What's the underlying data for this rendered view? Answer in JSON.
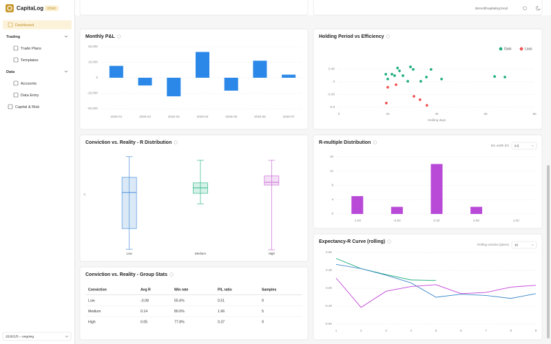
{
  "app": {
    "name": "CapitaLog",
    "badge": "DEMO",
    "user": "demo@capitalog.local"
  },
  "nav": [
    "Dashboard",
    "Trading",
    "Trade Plans",
    "Templates",
    "Data",
    "Accounts",
    "Data Entry",
    "Capital & Risk"
  ],
  "date_range": "2026/1/5 – ongoing",
  "chart_data": [
    {
      "type": "bar",
      "title": "Monthly P&L",
      "categories": [
        "2026-01",
        "2026-02",
        "2026-03",
        "2026-04",
        "2026-05",
        "2026-06",
        "2026-07"
      ],
      "values": [
        11500,
        -7500,
        -18000,
        25000,
        -12500,
        16500,
        3000
      ],
      "color": "#2b88e8",
      "ylim": [
        -30000,
        30000
      ],
      "yticks": [
        {
          "value": 30000,
          "label": "30,000"
        },
        {
          "value": 15000,
          "label": "15,000"
        },
        0,
        {
          "value": -15000,
          "label": "-15,000"
        },
        {
          "value": -30000,
          "label": "-30,000"
        }
      ],
      "grid": true
    },
    {
      "type": "scatter",
      "title": "Holding Period vs Efficiency",
      "x_label": "Holding days",
      "xlim": [
        0,
        80
      ],
      "xticks": [
        0,
        20,
        40,
        60,
        80
      ],
      "ylim": [
        -0.9,
        0.9
      ],
      "yticks": [
        0.45,
        0,
        -0.45,
        -0.9
      ],
      "grid": true,
      "legend": "top-right",
      "series": [
        {
          "name": "Gain",
          "color": "#1fae7e",
          "x": [
            19.2,
            20,
            21.7,
            22.8,
            24,
            24.8,
            26.2,
            28.2,
            29.3,
            30.4,
            33.5,
            35.8,
            37.7,
            42,
            63.7,
            67.9
          ],
          "values": [
            0.27,
            0.1,
            0.27,
            0.22,
            0.49,
            0.39,
            0.22,
            0.02,
            0.53,
            0.44,
            0.02,
            0.17,
            0.44,
            0.1,
            0.19,
            0.17
          ]
        },
        {
          "name": "Loss",
          "color": "#ef5350",
          "x": [
            20,
            23.4,
            19.4,
            30.7,
            33.2,
            36
          ],
          "values": [
            -0.19,
            -0.1,
            -0.75,
            -0.51,
            -0.63,
            -0.83
          ]
        }
      ]
    },
    {
      "type": "box",
      "title": "Conviction vs. Reality - R Distribution",
      "categories": [
        "Low",
        "Medium",
        "High"
      ],
      "colors": [
        "#4a90d9",
        "#2eb88a",
        "#c96ad6"
      ],
      "boxes": [
        {
          "min": -1.98,
          "q1": -1.23,
          "median": 0.08,
          "q3": 0.63,
          "max": 1.38
        },
        {
          "min": -0.33,
          "q1": 0.05,
          "median": 0.25,
          "q3": 0.43,
          "max": 1.25
        },
        {
          "min": -2.0,
          "q1": 0.35,
          "median": 0.45,
          "q3": 0.68,
          "max": 1.25
        }
      ],
      "ylim": [
        -2.2,
        1.5
      ],
      "yticks": [
        0
      ]
    },
    {
      "type": "histogram",
      "title": "R-multiple Distribution",
      "control": {
        "label": "Bin width (R)",
        "value": 0.5
      },
      "bins": [
        -1.25,
        -0.75,
        -0.25,
        0.25,
        0.75,
        1.25
      ],
      "counts": [
        5,
        2,
        14,
        2,
        0
      ],
      "color": "#b94ad8",
      "xlim": [
        -1.25,
        1.25
      ],
      "xticks": [
        {
          "value": -1,
          "label": "-1.00"
        },
        {
          "value": -0.5,
          "label": "-0.50"
        },
        {
          "value": 0,
          "label": "0.00"
        },
        {
          "value": 0.5,
          "label": "0.50"
        },
        {
          "value": 1,
          "label": "1.00"
        }
      ],
      "ylim": [
        0,
        16
      ],
      "yticks": [
        0,
        4,
        8,
        12,
        16
      ],
      "grid": true
    },
    {
      "type": "line",
      "title": "Expectancy-R Curve (rolling)",
      "control": {
        "label": "Rolling window (plans)",
        "value": 10
      },
      "x": [
        1,
        2,
        3,
        4,
        5,
        6,
        7,
        8,
        9
      ],
      "xlim": [
        1,
        9
      ],
      "xticks": [
        1,
        2,
        3,
        4,
        5,
        6,
        7,
        8,
        9
      ],
      "ylim": [
        -0.6,
        0.6
      ],
      "yticks": [
        {
          "value": 0.6,
          "label": "0.60"
        },
        {
          "value": 0.3,
          "label": "0.30"
        },
        {
          "value": 0,
          "label": "0.00"
        },
        {
          "value": -0.3,
          "label": "-0.30"
        },
        {
          "value": -0.6,
          "label": "-0.60"
        }
      ],
      "grid": true,
      "series": [
        {
          "color": "#1fae7e",
          "values": [
            0.5,
            0.33,
            0.23,
            0.14,
            0.13,
            null,
            null,
            null,
            null
          ]
        },
        {
          "color": "#3b87c9",
          "values": [
            0.4,
            0.33,
            0.22,
            0.09,
            -0.15,
            -0.1,
            -0.12,
            -0.17,
            -0.09
          ]
        },
        {
          "color": "#c23fd9",
          "values": [
            0.17,
            -0.32,
            -0.05,
            0.03,
            0.06,
            -0.09,
            -0.07,
            0.02,
            0.05
          ]
        }
      ]
    }
  ],
  "table": {
    "title": "Conviction vs. Reality - Group Stats",
    "columns": [
      "Conviction",
      "Avg R",
      "Win rate",
      "P/L ratio",
      "Samples"
    ],
    "rows": [
      [
        "Low",
        -0.08,
        "55.6%",
        0.51,
        9
      ],
      [
        "Medium",
        0.14,
        "80.0%",
        1.66,
        5
      ],
      [
        "High",
        0.05,
        "77.8%",
        0.37,
        9
      ]
    ]
  }
}
